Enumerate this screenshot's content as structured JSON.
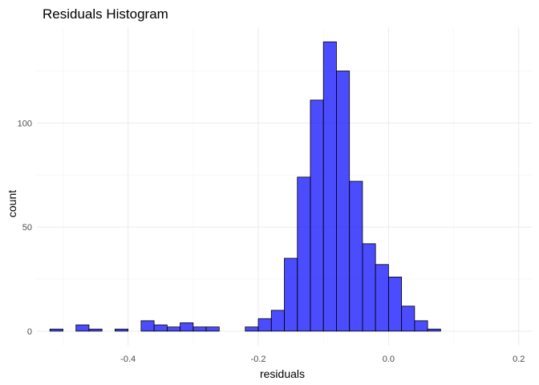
{
  "chart_data": {
    "type": "bar",
    "subtype": "histogram",
    "title": "Residuals Histogram",
    "xlabel": "residuals",
    "ylabel": "count",
    "bin_width": 0.02,
    "bin_start": -0.52,
    "counts": [
      1,
      0,
      3,
      1,
      0,
      1,
      0,
      5,
      3,
      2,
      4,
      2,
      2,
      0,
      0,
      2,
      6,
      10,
      35,
      74,
      111,
      139,
      125,
      72,
      42,
      32,
      26,
      12,
      5,
      1
    ],
    "xlim": [
      -0.54,
      0.22
    ],
    "ylim": [
      -7,
      146
    ],
    "x_ticks": [
      -0.4,
      -0.2,
      0.0,
      0.2
    ],
    "x_tick_labels": [
      "-0.4",
      "-0.2",
      "0.0",
      "0.2"
    ],
    "y_ticks": [
      0,
      50,
      100
    ],
    "y_tick_labels": [
      "0",
      "50",
      "100"
    ],
    "grid": true,
    "bar_fill": "#0000ff",
    "bar_fill_opacity": 0.7,
    "bar_stroke": "#000000"
  }
}
